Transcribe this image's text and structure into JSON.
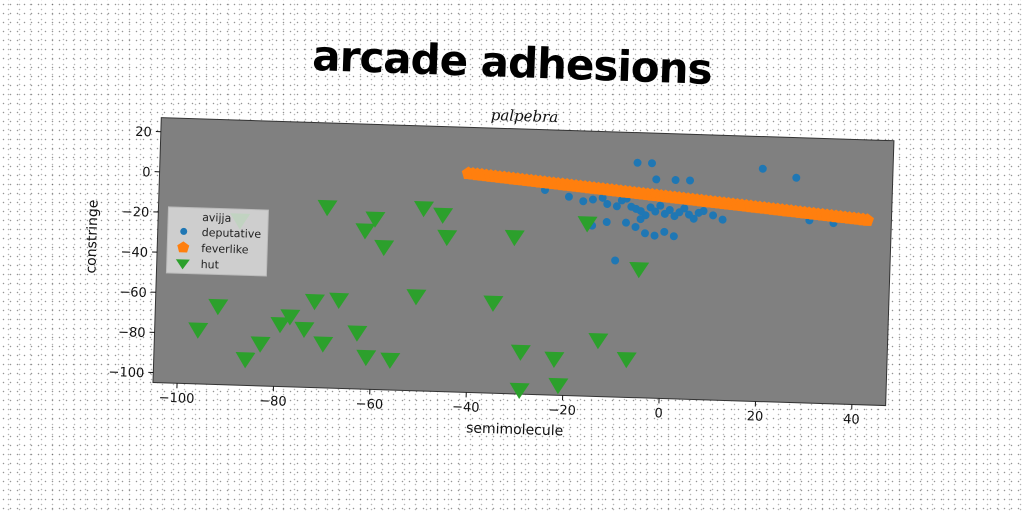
{
  "title": "arcade adhesions",
  "chart_data": {
    "type": "scatter",
    "subtitle": "palpebra",
    "xlabel": "semimolecule",
    "ylabel": "constringe",
    "xlim": [
      -105,
      47
    ],
    "ylim": [
      -105,
      27
    ],
    "xticks": [
      -100,
      -80,
      -60,
      -40,
      -20,
      0,
      20,
      40
    ],
    "yticks": [
      20,
      0,
      -20,
      -40,
      -60,
      -80,
      -100
    ],
    "plot_background": "#808080",
    "legend": {
      "position": "upper-left"
    },
    "legend_header": "avijja",
    "series": [
      {
        "name": "deputative",
        "marker": "circle",
        "color": "#1f77b4",
        "points": [
          [
            -6,
            12
          ],
          [
            -3,
            12
          ],
          [
            -2,
            4
          ],
          [
            2,
            4
          ],
          [
            5,
            4
          ],
          [
            20,
            11
          ],
          [
            27,
            7
          ],
          [
            -25,
            -3
          ],
          [
            -20,
            -6
          ],
          [
            -17,
            -8
          ],
          [
            -15,
            -7
          ],
          [
            -13,
            -6
          ],
          [
            -12,
            -9
          ],
          [
            -10,
            -10
          ],
          [
            -9,
            -7
          ],
          [
            -8,
            -6
          ],
          [
            -7,
            -10
          ],
          [
            -6,
            -11
          ],
          [
            -5,
            -12
          ],
          [
            -4,
            -14
          ],
          [
            -3,
            -10
          ],
          [
            -2,
            -12
          ],
          [
            -1,
            -9
          ],
          [
            0,
            -13
          ],
          [
            1,
            -11
          ],
          [
            2,
            -14
          ],
          [
            3,
            -12
          ],
          [
            4,
            -10
          ],
          [
            5,
            -13
          ],
          [
            6,
            -15
          ],
          [
            7,
            -12
          ],
          [
            8,
            -11
          ],
          [
            10,
            -13
          ],
          [
            12,
            -15
          ],
          [
            -8,
            -18
          ],
          [
            -6,
            -20
          ],
          [
            -5,
            -16
          ],
          [
            -4,
            -23
          ],
          [
            -2,
            -24
          ],
          [
            0,
            -22
          ],
          [
            2,
            -24
          ],
          [
            -15,
            -20
          ],
          [
            -12,
            -18
          ],
          [
            -10,
            -37
          ],
          [
            30,
            -14
          ],
          [
            35,
            -15
          ]
        ]
      },
      {
        "name": "feverlike",
        "marker": "pentagon",
        "color": "#ff7f0e",
        "x_range": [
          -41,
          42
        ],
        "y_range": [
          4,
          -13
        ],
        "count": 90
      },
      {
        "name": "hut",
        "marker": "triangle-down",
        "color": "#2ca02c",
        "points": [
          [
            -88,
            -23
          ],
          [
            -70,
            -15
          ],
          [
            -62,
            -26
          ],
          [
            -60,
            -20
          ],
          [
            -58,
            -34
          ],
          [
            -50,
            -14
          ],
          [
            -46,
            -17
          ],
          [
            -45,
            -28
          ],
          [
            -31,
            -27
          ],
          [
            -16,
            -19
          ],
          [
            -5,
            -41
          ],
          [
            -92,
            -66
          ],
          [
            -96,
            -78
          ],
          [
            -86,
            -92
          ],
          [
            -83,
            -84
          ],
          [
            -79,
            -74
          ],
          [
            -77,
            -70
          ],
          [
            -74,
            -76
          ],
          [
            -72,
            -62
          ],
          [
            -70,
            -83
          ],
          [
            -67,
            -61
          ],
          [
            -63,
            -77
          ],
          [
            -61,
            -89
          ],
          [
            -56,
            -90
          ],
          [
            -51,
            -58
          ],
          [
            -35,
            -60
          ],
          [
            -29,
            -84
          ],
          [
            -22,
            -87
          ],
          [
            -21,
            -100
          ],
          [
            -13,
            -77
          ],
          [
            -7,
            -86
          ],
          [
            -29,
            -103
          ]
        ]
      }
    ]
  }
}
